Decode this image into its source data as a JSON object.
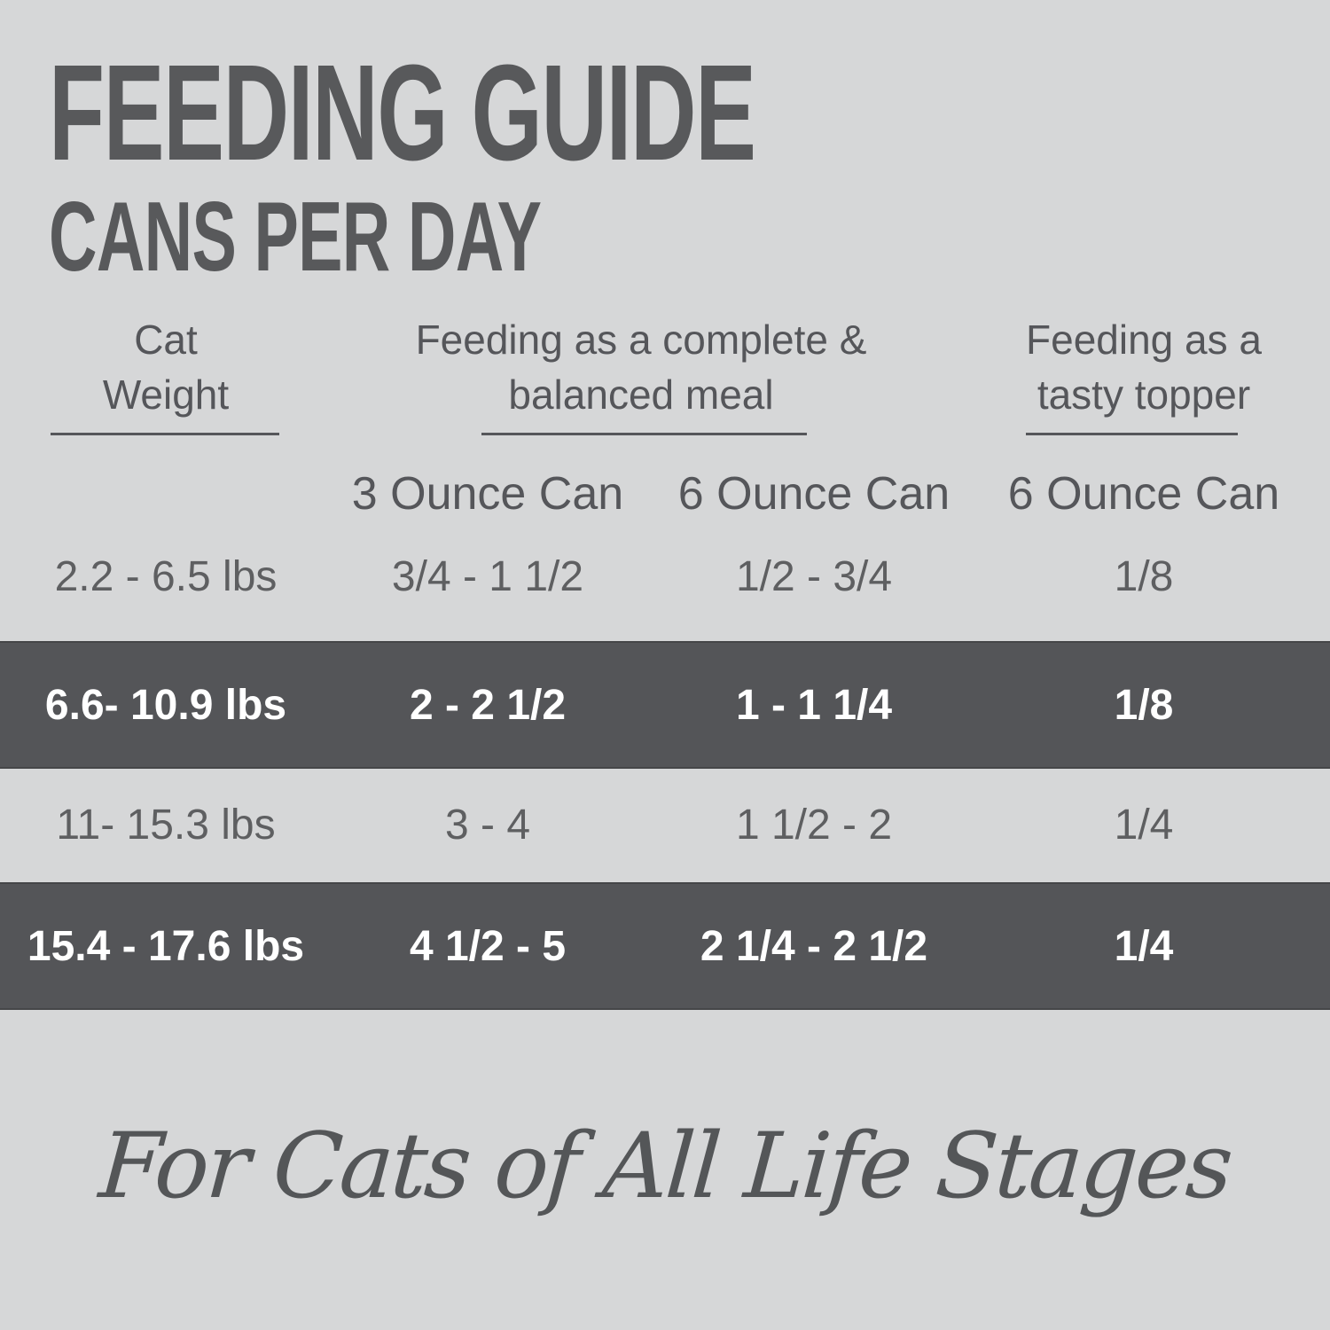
{
  "title": "FEEDING GUIDE",
  "subtitle": "CANS PER DAY",
  "table": {
    "group_headers": {
      "weight": {
        "line1": "Cat",
        "line2": "Weight"
      },
      "meal": {
        "line1": "Feeding as a complete &",
        "line2": "balanced meal"
      },
      "topper": {
        "line1": "Feeding as a",
        "line2": "tasty topper"
      }
    },
    "subheaders": [
      "3 Ounce Can",
      "6 Ounce Can",
      "6 Ounce Can"
    ],
    "rows": [
      {
        "weight": "2.2 - 6.5 lbs",
        "can3": "3/4 - 1 1/2",
        "can6": "1/2 - 3/4",
        "topper": "1/8",
        "highlighted": false
      },
      {
        "weight": "6.6- 10.9 lbs",
        "can3": "2 - 2 1/2",
        "can6": "1 - 1 1/4",
        "topper": "1/8",
        "highlighted": true
      },
      {
        "weight": "11- 15.3 lbs",
        "can3": "3 - 4",
        "can6": "1 1/2 - 2",
        "topper": "1/4",
        "highlighted": false
      },
      {
        "weight": "15.4 - 17.6 lbs",
        "can3": "4 1/2 - 5",
        "can6": "2 1/4 - 2 1/2",
        "topper": "1/4",
        "highlighted": true
      }
    ]
  },
  "footer": "For Cats of All Life Stages",
  "colors": {
    "background": "#d6d7d8",
    "highlight_band": "#545558",
    "heading_text": "#58595b",
    "body_text": "#5e5f61",
    "band_text": "#ffffff"
  }
}
